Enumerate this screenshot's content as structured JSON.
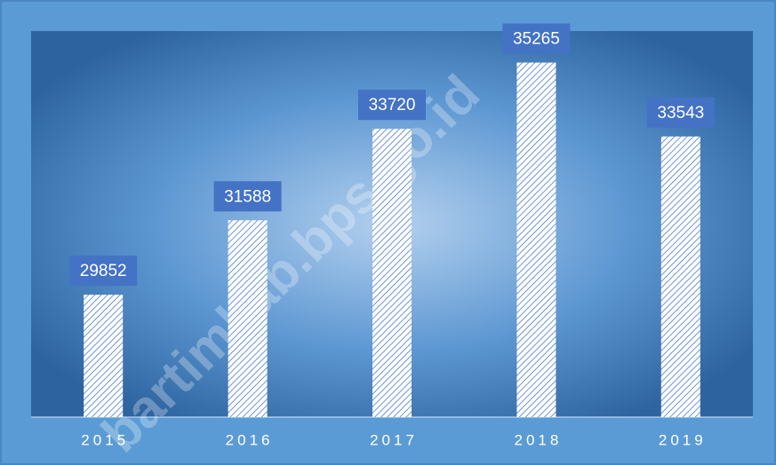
{
  "chart_data": {
    "type": "bar",
    "categories": [
      "2015",
      "2016",
      "2017",
      "2018",
      "2019"
    ],
    "values": [
      29852,
      31588,
      33720,
      35265,
      33543
    ],
    "color": "#4a7cc9",
    "label_color": "#4472c4",
    "ylim": [
      27000,
      36000
    ],
    "grid": false,
    "watermark": "bartimkab.bps.go.id"
  }
}
